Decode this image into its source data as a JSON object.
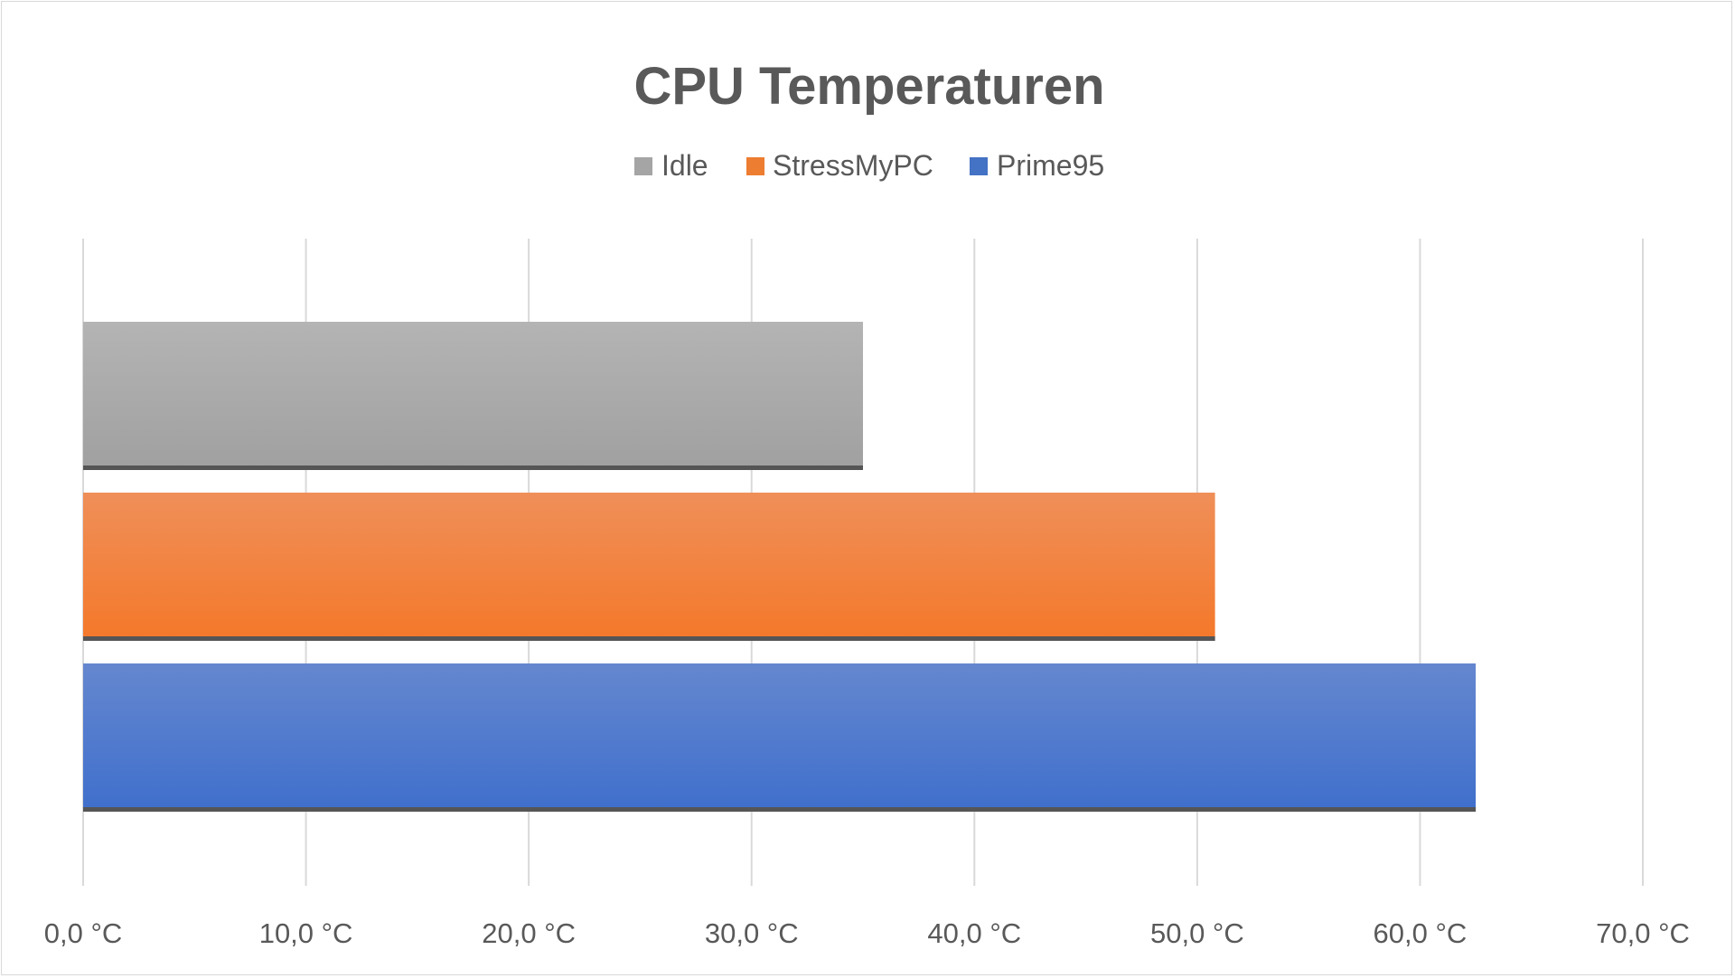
{
  "chart_data": {
    "type": "bar",
    "orientation": "horizontal",
    "title": "CPU Temperaturen",
    "xlabel": "",
    "ylabel": "",
    "xlim": [
      0,
      70
    ],
    "tick_step": 10,
    "tick_labels": [
      "0,0 °C",
      "10,0 °C",
      "20,0 °C",
      "30,0 °C",
      "40,0 °C",
      "50,0 °C",
      "60,0 °C",
      "70,0 °C"
    ],
    "grid": true,
    "legend_position": "top",
    "series": [
      {
        "name": "Idle",
        "value": 35.0,
        "color": "#a5a5a5"
      },
      {
        "name": "StressMyPC",
        "value": 50.8,
        "color": "#ed7d31"
      },
      {
        "name": "Prime95",
        "value": 62.5,
        "color": "#4472c4"
      }
    ]
  }
}
